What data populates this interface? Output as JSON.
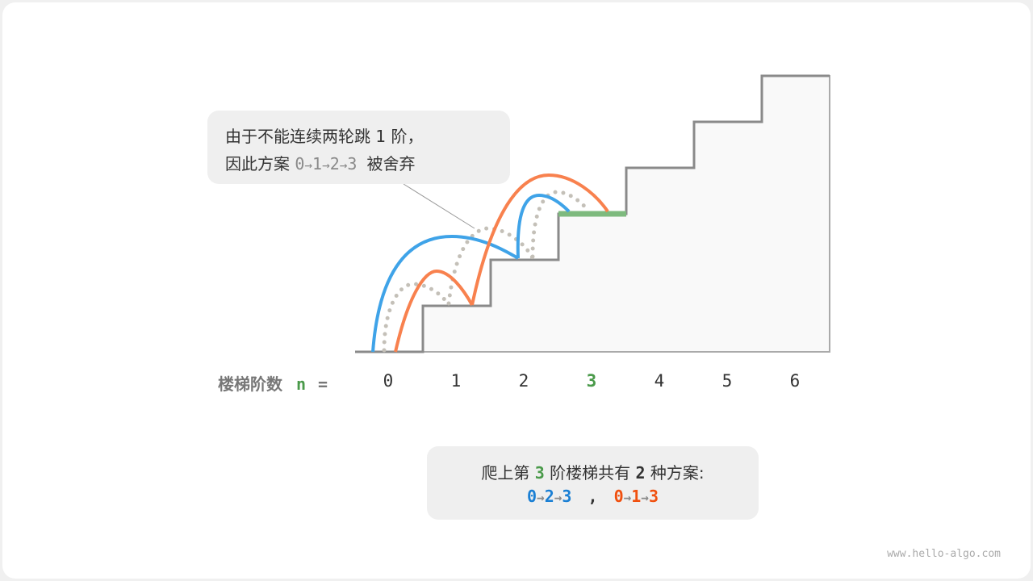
{
  "callout": {
    "line1": "由于不能连续两轮跳 1 阶，",
    "line2_prefix": "因此方案",
    "path": [
      "0",
      "1",
      "2",
      "3"
    ],
    "line2_suffix": "被舍弃"
  },
  "axis": {
    "label": "楼梯阶数",
    "var": "n",
    "eq": "=",
    "steps": [
      "0",
      "1",
      "2",
      "3",
      "4",
      "5",
      "6"
    ],
    "highlight_step": "3"
  },
  "summary": {
    "prefix": "爬上第",
    "n": "3",
    "middle": "阶楼梯共有",
    "count": "2",
    "suffix": "种方案:",
    "plan_a": [
      "0",
      "2",
      "3"
    ],
    "separator": ",",
    "plan_b": [
      "0",
      "1",
      "3"
    ]
  },
  "colors": {
    "blue": "#3fa3e8",
    "orange": "#f8814e",
    "green": "#7eba7e",
    "plan_a": "#1a7fd4",
    "plan_b": "#f0500f",
    "highlight": "#4a9a4a",
    "dotted": "#c4c0b8"
  },
  "watermark": "www.hello-algo.com"
}
